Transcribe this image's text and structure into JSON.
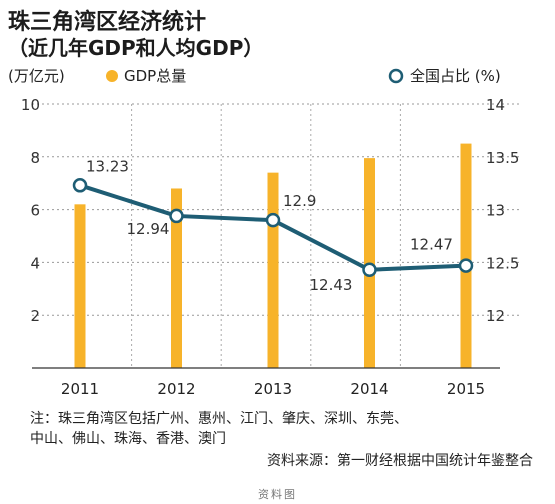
{
  "title": "珠三角湾区经济统计",
  "subtitle": "（近几年GDP和人均GDP）",
  "chart_data": {
    "type": "bar+line",
    "categories": [
      "2011",
      "2012",
      "2013",
      "2014",
      "2015"
    ],
    "left_axis": {
      "unit_label": "(万亿元)",
      "ylim": [
        0,
        10
      ],
      "ticks": [
        "2",
        "4",
        "6",
        "8",
        "10"
      ]
    },
    "right_axis": {
      "unit_label": "(%)",
      "ylim": [
        11.5,
        14
      ],
      "ticks": [
        "12",
        "12.5",
        "13",
        "13.5",
        "14"
      ]
    },
    "series": [
      {
        "name": "GDP总量",
        "type": "bar",
        "axis": "left",
        "color": "#f7b32a",
        "values": [
          6.2,
          6.8,
          7.4,
          7.95,
          8.5
        ]
      },
      {
        "name": "全国占比",
        "type": "line",
        "axis": "right",
        "color": "#1e5d74",
        "values": [
          13.23,
          12.94,
          12.9,
          12.43,
          12.47
        ],
        "labels": [
          "13.23",
          "12.94",
          "12.9",
          "12.43",
          "12.47"
        ]
      }
    ],
    "grid": true,
    "legend": "top"
  },
  "notes": {
    "line1": "注：珠三角湾区包括广州、惠州、江门、肇庆、深圳、东莞、",
    "line2": "中山、佛山、珠海、香港、澳门",
    "source": "资料来源：第一财经根据中国统计年鉴整合"
  },
  "caption": "资料图"
}
